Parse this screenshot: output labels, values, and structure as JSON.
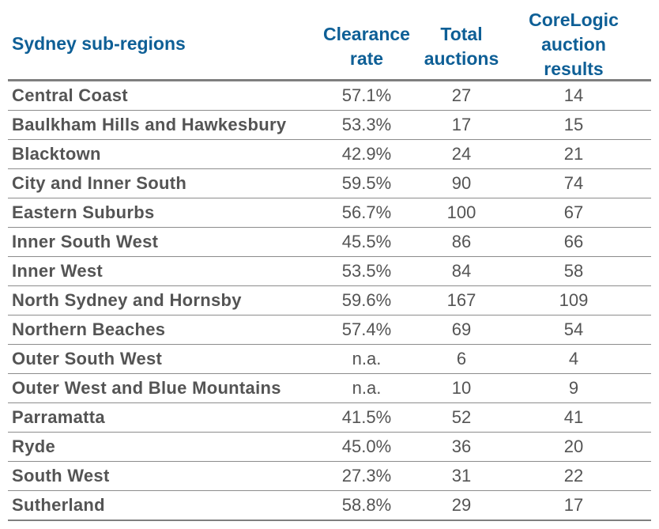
{
  "chart_data": {
    "type": "table",
    "columns": [
      "Sydney sub-regions",
      "Clearance rate",
      "Total auctions",
      "CoreLogic auction results"
    ],
    "header_lines": {
      "region": [
        "Sydney sub-regions"
      ],
      "clearance": [
        "Clearance",
        "rate"
      ],
      "total": [
        "Total",
        "auctions"
      ],
      "corelogic": [
        "CoreLogic",
        "auction",
        "results"
      ]
    },
    "rows": [
      {
        "region": "Central Coast",
        "clearance": "57.1%",
        "total": "27",
        "corelogic": "14"
      },
      {
        "region": "Baulkham Hills and Hawkesbury",
        "clearance": "53.3%",
        "total": "17",
        "corelogic": "15"
      },
      {
        "region": "Blacktown",
        "clearance": "42.9%",
        "total": "24",
        "corelogic": "21"
      },
      {
        "region": "City and Inner South",
        "clearance": "59.5%",
        "total": "90",
        "corelogic": "74"
      },
      {
        "region": "Eastern Suburbs",
        "clearance": "56.7%",
        "total": "100",
        "corelogic": "67"
      },
      {
        "region": "Inner South West",
        "clearance": "45.5%",
        "total": "86",
        "corelogic": "66"
      },
      {
        "region": "Inner West",
        "clearance": "53.5%",
        "total": "84",
        "corelogic": "58"
      },
      {
        "region": "North Sydney and Hornsby",
        "clearance": "59.6%",
        "total": "167",
        "corelogic": "109"
      },
      {
        "region": "Northern Beaches",
        "clearance": "57.4%",
        "total": "69",
        "corelogic": "54"
      },
      {
        "region": "Outer South West",
        "clearance": "n.a.",
        "total": "6",
        "corelogic": "4"
      },
      {
        "region": "Outer West and Blue Mountains",
        "clearance": "n.a.",
        "total": "10",
        "corelogic": "9"
      },
      {
        "region": "Parramatta",
        "clearance": "41.5%",
        "total": "52",
        "corelogic": "41"
      },
      {
        "region": "Ryde",
        "clearance": "45.0%",
        "total": "36",
        "corelogic": "20"
      },
      {
        "region": "South West",
        "clearance": "27.3%",
        "total": "31",
        "corelogic": "22"
      },
      {
        "region": "Sutherland",
        "clearance": "58.8%",
        "total": "29",
        "corelogic": "17"
      }
    ],
    "colors": {
      "header_text": "#0e5f96",
      "body_text": "#545454",
      "rule": "#7f7f7f"
    }
  }
}
